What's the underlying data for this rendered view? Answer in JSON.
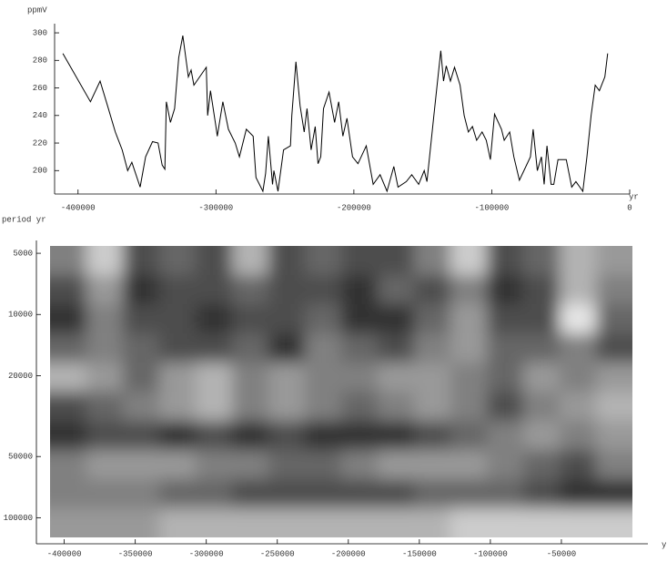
{
  "chart_data": [
    {
      "type": "line",
      "y_label": "ppmV",
      "x_label": "yr",
      "color": "#000000",
      "xlim": [
        -417000,
        0
      ],
      "ylim": [
        183,
        304
      ],
      "xticks": [
        -400000,
        -300000,
        -200000,
        -100000,
        0
      ],
      "yticks": [
        200,
        220,
        240,
        260,
        280,
        300
      ],
      "x": [
        -411000,
        -391000,
        -384000,
        -378000,
        -373000,
        -368000,
        -364000,
        -361000,
        -355000,
        -351000,
        -346000,
        -342000,
        -339000,
        -337000,
        -336000,
        -333000,
        -330000,
        -327000,
        -324000,
        -320000,
        -318000,
        -316000,
        -307000,
        -306000,
        -304000,
        -300000,
        -299000,
        -295000,
        -291000,
        -286000,
        -283000,
        -278000,
        -273000,
        -271000,
        -266000,
        -264000,
        -262000,
        -259000,
        -258000,
        -255000,
        -251000,
        -246000,
        -245000,
        -242000,
        -239000,
        -236000,
        -234000,
        -231000,
        -228000,
        -226000,
        -224000,
        -222000,
        -218000,
        -214000,
        -211000,
        -208000,
        -205000,
        -201000,
        -197000,
        -191000,
        -186000,
        -181000,
        -176000,
        -171000,
        -168000,
        -162000,
        -158000,
        -153000,
        -149000,
        -147000,
        -142000,
        -137000,
        -135000,
        -133000,
        -130000,
        -127000,
        -123000,
        -120000,
        -117000,
        -114000,
        -111000,
        -107000,
        -104000,
        -101000,
        -98000,
        -93000,
        -91000,
        -87000,
        -84000,
        -80000,
        -72000,
        -70000,
        -67000,
        -64000,
        -62000,
        -60000,
        -57000,
        -55000,
        -52000,
        -46000,
        -42000,
        -39000,
        -34000,
        -31000,
        -28000,
        -25000,
        -22000,
        -18000,
        -16000
      ],
      "values": [
        285,
        250,
        265,
        245,
        228,
        215,
        200,
        206,
        188,
        210,
        221,
        220,
        204,
        201,
        250,
        235,
        245,
        282,
        298,
        268,
        273,
        262,
        275,
        240,
        258,
        232,
        225,
        250,
        230,
        220,
        210,
        230,
        225,
        195,
        185,
        198,
        225,
        190,
        200,
        185,
        215,
        218,
        240,
        279,
        247,
        228,
        245,
        215,
        232,
        205,
        210,
        245,
        257,
        235,
        250,
        225,
        238,
        210,
        205,
        218,
        190,
        197,
        185,
        203,
        188,
        192,
        197,
        190,
        200,
        192,
        240,
        287,
        265,
        276,
        265,
        275,
        262,
        240,
        228,
        232,
        222,
        228,
        222,
        208,
        241,
        230,
        222,
        228,
        210,
        193,
        210,
        230,
        200,
        210,
        190,
        218,
        190,
        190,
        208,
        208,
        188,
        192,
        185,
        210,
        240,
        262,
        258,
        268,
        285
      ]
    },
    {
      "type": "heatmap",
      "y_label": "period yr",
      "x_label": "yr",
      "y_scale": "log",
      "y_reversed": true,
      "xlim": [
        -410000,
        0
      ],
      "ylim": [
        4600,
        125000
      ],
      "xticks": [
        -400000,
        -350000,
        -300000,
        -250000,
        -200000,
        -150000,
        -100000,
        -50000
      ],
      "yticks": [
        5000,
        10000,
        20000,
        50000,
        100000
      ],
      "z": [
        [
          0.5,
          0.8,
          0.3,
          0.4,
          0.3,
          0.7,
          0.3,
          0.4,
          0.3,
          0.3,
          0.5,
          0.8,
          0.3,
          0.4,
          0.7,
          0.6
        ],
        [
          0.3,
          0.6,
          0.2,
          0.3,
          0.3,
          0.4,
          0.3,
          0.3,
          0.2,
          0.4,
          0.3,
          0.5,
          0.2,
          0.3,
          0.7,
          0.5
        ],
        [
          0.2,
          0.5,
          0.3,
          0.3,
          0.2,
          0.3,
          0.3,
          0.4,
          0.2,
          0.2,
          0.4,
          0.6,
          0.3,
          0.3,
          0.9,
          0.4
        ],
        [
          0.4,
          0.5,
          0.4,
          0.3,
          0.3,
          0.4,
          0.2,
          0.5,
          0.4,
          0.3,
          0.5,
          0.6,
          0.4,
          0.4,
          0.5,
          0.3
        ],
        [
          0.7,
          0.6,
          0.4,
          0.6,
          0.7,
          0.5,
          0.6,
          0.5,
          0.5,
          0.6,
          0.6,
          0.5,
          0.4,
          0.6,
          0.5,
          0.6
        ],
        [
          0.3,
          0.4,
          0.5,
          0.6,
          0.7,
          0.5,
          0.6,
          0.5,
          0.4,
          0.5,
          0.6,
          0.5,
          0.3,
          0.5,
          0.6,
          0.7
        ],
        [
          0.2,
          0.3,
          0.3,
          0.2,
          0.3,
          0.2,
          0.3,
          0.2,
          0.2,
          0.2,
          0.3,
          0.4,
          0.5,
          0.6,
          0.5,
          0.6
        ],
        [
          0.5,
          0.6,
          0.6,
          0.6,
          0.5,
          0.5,
          0.4,
          0.4,
          0.5,
          0.6,
          0.6,
          0.6,
          0.5,
          0.4,
          0.3,
          0.5
        ],
        [
          0.5,
          0.5,
          0.5,
          0.4,
          0.4,
          0.3,
          0.3,
          0.3,
          0.3,
          0.3,
          0.4,
          0.4,
          0.4,
          0.3,
          0.2,
          0.2
        ],
        [
          0.6,
          0.6,
          0.6,
          0.7,
          0.7,
          0.7,
          0.7,
          0.7,
          0.7,
          0.7,
          0.7,
          0.8,
          0.8,
          0.8,
          0.8,
          0.8
        ]
      ]
    }
  ]
}
